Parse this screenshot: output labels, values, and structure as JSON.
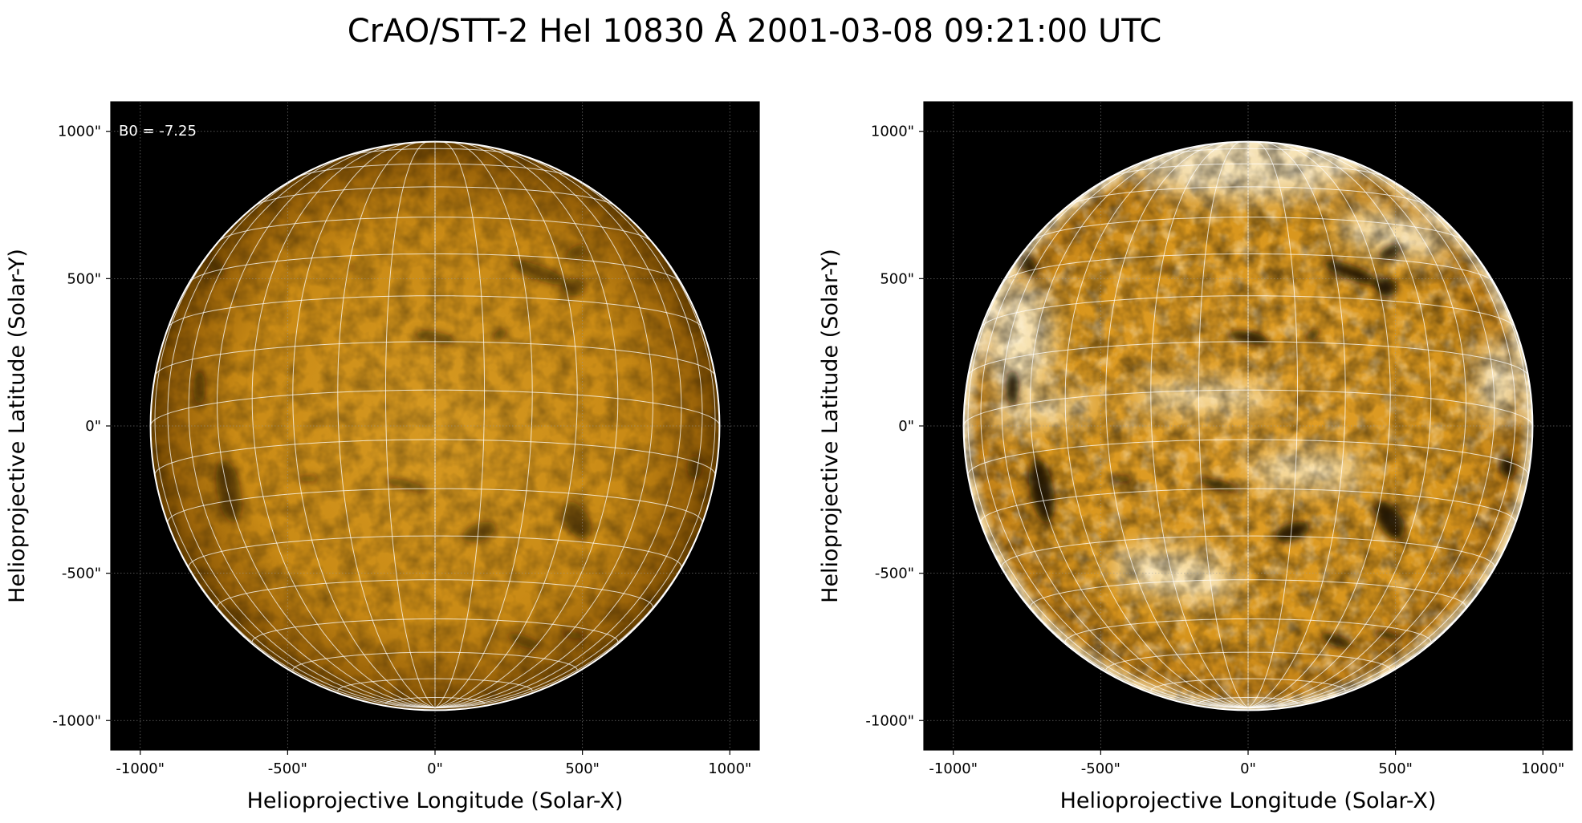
{
  "title": "CrAO/STT-2 HeI 10830 Å 2001-03-08 09:21:00 UTC",
  "colors": {
    "background": "#ffffff",
    "sky": "#000000",
    "disk_mid": "#c98a15",
    "disk_edge": "#6b4200",
    "limb": "#ffffff",
    "grid": "#ffffff"
  },
  "panels": [
    {
      "id": "left",
      "xlabel": "Helioprojective Longitude (Solar-X)",
      "ylabel": "Helioprojective Latitude (Solar-Y)",
      "xlim": [
        -1100,
        1100
      ],
      "ylim": [
        -1100,
        1100
      ],
      "xticks": [
        -1000,
        -500,
        0,
        500,
        1000
      ],
      "xtick_labels": [
        "-1000\"",
        "-500\"",
        "0\"",
        "500\"",
        "1000\""
      ],
      "yticks": [
        1000,
        500,
        0,
        -500,
        -1000
      ],
      "ytick_labels": [
        "1000\"",
        "500\"",
        "0\"",
        "-500\"",
        "-1000\""
      ],
      "annotation": "B0 = -7.25",
      "solar_radius_arcsec": 965,
      "style": "normal"
    },
    {
      "id": "right",
      "xlabel": "Helioprojective Longitude (Solar-X)",
      "ylabel": "Helioprojective Latitude (Solar-Y)",
      "xlim": [
        -1100,
        1100
      ],
      "ylim": [
        -1100,
        1100
      ],
      "xticks": [
        -1000,
        -500,
        0,
        500,
        1000
      ],
      "xtick_labels": [
        "-1000\"",
        "-500\"",
        "0\"",
        "500\"",
        "1000\""
      ],
      "yticks": [
        1000,
        500,
        0,
        -500,
        -1000
      ],
      "ytick_labels": [
        "1000\"",
        "500\"",
        "0\"",
        "-500\"",
        "-1000\""
      ],
      "annotation": "",
      "solar_radius_arcsec": 965,
      "style": "enhanced"
    }
  ],
  "b0_deg": -7.25,
  "grid_spacing_deg": 10,
  "dark_features": [
    {
      "x": 0,
      "y": 300,
      "rx": 70,
      "ry": 20,
      "angle": -10
    },
    {
      "x": 220,
      "y": 310,
      "rx": 30,
      "ry": 14,
      "angle": 40
    },
    {
      "x": 350,
      "y": 520,
      "rx": 100,
      "ry": 24,
      "angle": -20
    },
    {
      "x": 470,
      "y": 470,
      "rx": 40,
      "ry": 30,
      "angle": 0
    },
    {
      "x": 480,
      "y": 590,
      "rx": 40,
      "ry": 20,
      "angle": 30
    },
    {
      "x": -280,
      "y": 540,
      "rx": 20,
      "ry": 8,
      "angle": 0
    },
    {
      "x": -740,
      "y": 540,
      "rx": 20,
      "ry": 40,
      "angle": 30
    },
    {
      "x": -800,
      "y": 130,
      "rx": 20,
      "ry": 60,
      "angle": 0
    },
    {
      "x": -700,
      "y": -220,
      "rx": 40,
      "ry": 110,
      "angle": 10
    },
    {
      "x": -100,
      "y": -200,
      "rx": 80,
      "ry": 14,
      "angle": -15
    },
    {
      "x": -430,
      "y": -180,
      "rx": 40,
      "ry": 12,
      "angle": 0
    },
    {
      "x": 480,
      "y": -320,
      "rx": 40,
      "ry": 70,
      "angle": 30
    },
    {
      "x": 880,
      "y": -140,
      "rx": 25,
      "ry": 40,
      "angle": 0
    },
    {
      "x": 300,
      "y": -730,
      "rx": 60,
      "ry": 18,
      "angle": -20
    },
    {
      "x": 470,
      "y": -710,
      "rx": 50,
      "ry": 12,
      "angle": -10
    },
    {
      "x": 150,
      "y": -360,
      "rx": 60,
      "ry": 30,
      "angle": 20
    }
  ],
  "bright_features": [
    {
      "x": 0,
      "y": 880,
      "rx": 380,
      "ry": 110,
      "angle": 0
    },
    {
      "x": -250,
      "y": -500,
      "rx": 220,
      "ry": 80,
      "angle": -10
    },
    {
      "x": 850,
      "y": 150,
      "rx": 80,
      "ry": 140,
      "angle": 0
    },
    {
      "x": -780,
      "y": 300,
      "rx": 120,
      "ry": 200,
      "angle": 0
    },
    {
      "x": -700,
      "y": 50,
      "rx": 200,
      "ry": 40,
      "angle": 10
    },
    {
      "x": 500,
      "y": 650,
      "rx": 200,
      "ry": 70,
      "angle": -10
    },
    {
      "x": 200,
      "y": -150,
      "rx": 200,
      "ry": 60,
      "angle": 0
    },
    {
      "x": -150,
      "y": 100,
      "rx": 250,
      "ry": 50,
      "angle": 0
    }
  ]
}
